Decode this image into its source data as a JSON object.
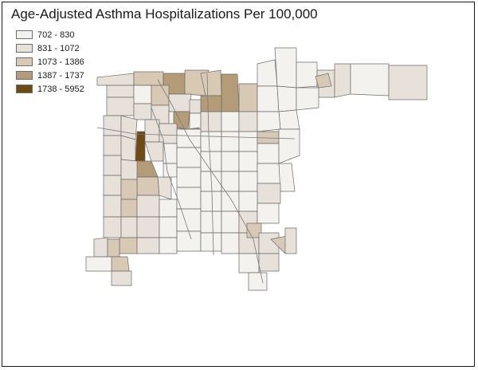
{
  "map": {
    "title": "Age-Adjusted Asthma Hospitalizations Per 100,000",
    "legend": [
      {
        "label": "702 - 830",
        "color": "#f4f2ef"
      },
      {
        "label": "831 - 1072",
        "color": "#e7e1d9"
      },
      {
        "label": "1073 - 1386",
        "color": "#d7c9b4"
      },
      {
        "label": "1387 - 1737",
        "color": "#b39c77"
      },
      {
        "label": "1738 - 5952",
        "color": "#6e4a14"
      }
    ]
  }
}
